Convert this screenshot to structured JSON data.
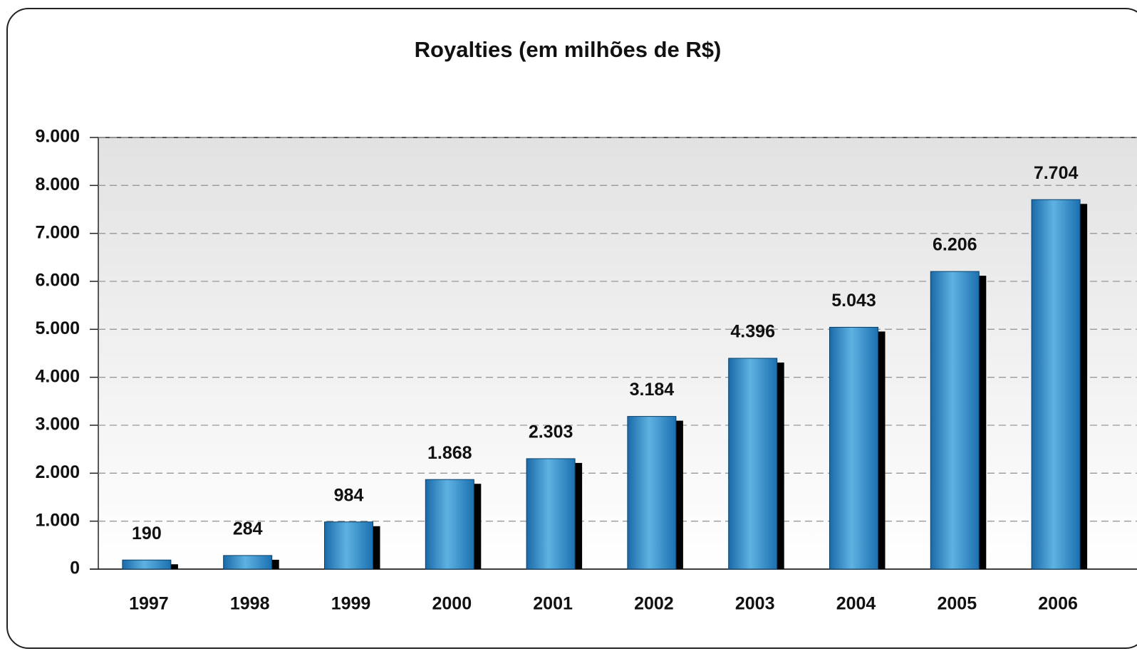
{
  "chart_data": {
    "type": "bar",
    "title": "Royalties (em milhões de R$)",
    "categories": [
      "1997",
      "1998",
      "1999",
      "2000",
      "2001",
      "2002",
      "2003",
      "2004",
      "2005",
      "2006"
    ],
    "values": [
      190,
      284,
      984,
      1868,
      2303,
      3184,
      4396,
      5043,
      6206,
      7704
    ],
    "value_labels": [
      "190",
      "284",
      "984",
      "1.868",
      "2.303",
      "3.184",
      "4.396",
      "5.043",
      "6.206",
      "7.704"
    ],
    "color": "#2a84c4",
    "ylim": [
      0,
      9000
    ],
    "yticks": [
      0,
      {
        "value": 1000,
        "label": "1.000"
      },
      {
        "value": 2000,
        "label": "2.000"
      },
      {
        "value": 3000,
        "label": "3.000"
      },
      {
        "value": 4000,
        "label": "4.000"
      },
      {
        "value": 5000,
        "label": "5.000"
      },
      {
        "value": 6000,
        "label": "6.000"
      },
      {
        "value": 7000,
        "label": "7.000"
      },
      {
        "value": 8000,
        "label": "8.000"
      },
      {
        "value": 9000,
        "label": "9.000"
      }
    ],
    "grid": true
  }
}
